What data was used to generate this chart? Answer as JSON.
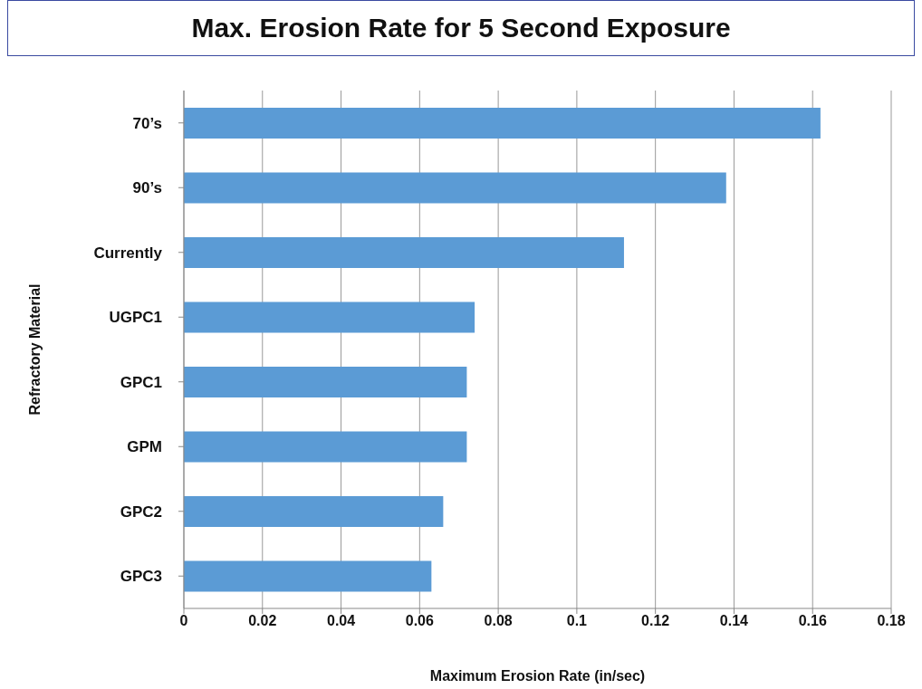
{
  "chart_data": {
    "type": "bar",
    "orientation": "horizontal",
    "title": "Max. Erosion Rate for 5 Second Exposure",
    "xlabel": "Maximum Erosion Rate (in/sec)",
    "ylabel": "Refractory Material",
    "categories": [
      "70’s",
      "90’s",
      "Currently",
      "UGPC1",
      "GPC1",
      "GPM",
      "GPC2",
      "GPC3"
    ],
    "values": [
      0.162,
      0.138,
      0.112,
      0.074,
      0.072,
      0.072,
      0.066,
      0.063
    ],
    "color": "#5b9bd5",
    "xlim": [
      0,
      0.18
    ],
    "xticks": [
      0,
      0.02,
      0.04,
      0.06,
      0.08,
      0.1,
      0.12,
      0.14,
      0.16,
      0.18
    ],
    "grid": "x"
  }
}
